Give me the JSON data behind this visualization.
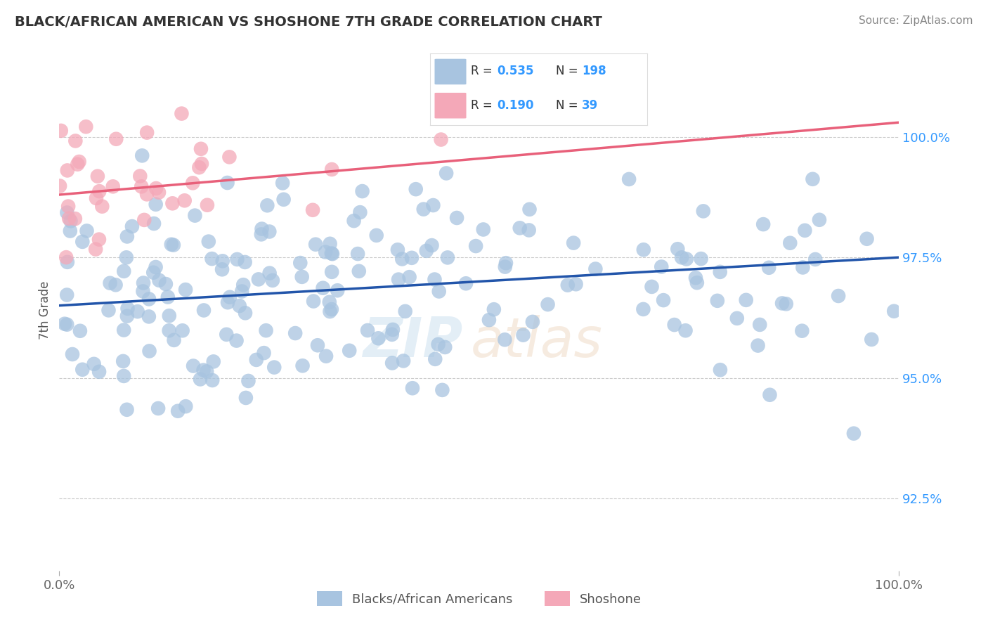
{
  "title": "BLACK/AFRICAN AMERICAN VS SHOSHONE 7TH GRADE CORRELATION CHART",
  "source": "Source: ZipAtlas.com",
  "ylabel": "7th Grade",
  "xmin": 0.0,
  "xmax": 100.0,
  "ymin": 91.0,
  "ymax": 101.8,
  "yticks": [
    92.5,
    95.0,
    97.5,
    100.0
  ],
  "ytick_labels": [
    "92.5%",
    "95.0%",
    "97.5%",
    "100.0%"
  ],
  "blue_R": 0.535,
  "blue_N": 198,
  "pink_R": 0.19,
  "pink_N": 39,
  "blue_color": "#a8c4e0",
  "pink_color": "#f4a8b8",
  "blue_line_color": "#2255aa",
  "pink_line_color": "#e8607a",
  "blue_label": "Blacks/African Americans",
  "pink_label": "Shoshone",
  "legend_R_label_color": "#3399ff",
  "title_color": "#333333",
  "source_color": "#888888",
  "ylabel_color": "#555555",
  "ytick_color": "#3399ff",
  "xtick_color": "#666666",
  "grid_color": "#cccccc",
  "blue_line_start_y": 96.5,
  "blue_line_end_y": 97.5,
  "pink_line_start_y": 98.8,
  "pink_line_end_y": 100.3
}
